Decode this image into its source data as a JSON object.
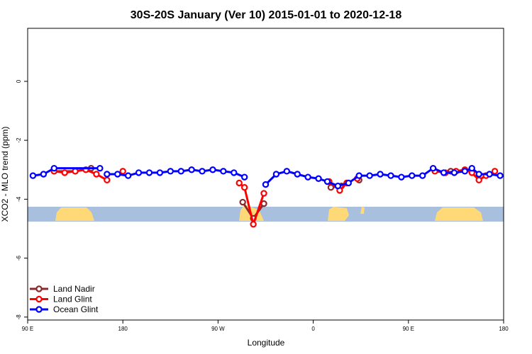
{
  "chart_data": {
    "type": "line",
    "title": "30S-20S January (Ver 10)   2015-01-01 to 2020-12-18",
    "xlabel": "Longitude",
    "ylabel": "XCO2 - MLO trend (ppm)",
    "xlim": [
      -90,
      180
    ],
    "ylim": [
      -8.1,
      1.8
    ],
    "x_ticks": [
      {
        "value": -90,
        "label": "90 E"
      },
      {
        "value": -36,
        "label": "180"
      },
      {
        "value": 18,
        "label": "90 W"
      },
      {
        "value": 72,
        "label": "0"
      },
      {
        "value": 126,
        "label": "90 E"
      },
      {
        "value": 180,
        "label": "180"
      }
    ],
    "y_ticks": [
      {
        "value": 0,
        "label": "0"
      },
      {
        "value": -2,
        "label": "-2"
      },
      {
        "value": -4,
        "label": "-4"
      },
      {
        "value": -6,
        "label": "-6"
      },
      {
        "value": -8,
        "label": "-8"
      }
    ],
    "grid": false,
    "legend_position": "bottom-left",
    "series": [
      {
        "name": "Land Nadir",
        "color": "#8b2a2a",
        "segments": [
          [
            [
              -75,
              -3.05
            ],
            [
              -63,
              -3.05
            ],
            [
              -54,
              -2.95
            ]
          ],
          [
            [
              32,
              -4.1
            ],
            [
              38,
              -4.65
            ],
            [
              44,
              -4.15
            ]
          ],
          [
            [
              82,
              -3.6
            ],
            [
              88,
              -3.55
            ]
          ],
          [
            [
              98,
              -3.35
            ]
          ],
          [
            [
              150,
              -3.05
            ]
          ]
        ]
      },
      {
        "name": "Land Glint",
        "color": "#ff0000",
        "segments": [
          [
            [
              -75,
              -3.05
            ],
            [
              -69,
              -3.1
            ],
            [
              -63,
              -3.05
            ],
            [
              -57,
              -3.0
            ],
            [
              -51,
              -3.15
            ],
            [
              -45,
              -3.35
            ]
          ],
          [
            [
              -36,
              -3.05
            ]
          ],
          [
            [
              30,
              -3.45
            ],
            [
              33,
              -3.6
            ],
            [
              38,
              -4.85
            ],
            [
              44,
              -3.8
            ]
          ],
          [
            [
              81,
              -3.4
            ],
            [
              87,
              -3.7
            ],
            [
              91,
              -3.45
            ]
          ],
          [
            [
              97,
              -3.3
            ]
          ],
          [
            [
              141,
              -3.05
            ],
            [
              147,
              -3.1
            ],
            [
              153,
              -3.05
            ],
            [
              158,
              -3.0
            ],
            [
              162,
              -3.1
            ],
            [
              166,
              -3.35
            ],
            [
              170,
              -3.2
            ],
            [
              175,
              -3.05
            ]
          ]
        ]
      },
      {
        "name": "Ocean Glint",
        "color": "#0000ff",
        "segments": [
          [
            [
              -87,
              -3.2
            ],
            [
              -81,
              -3.15
            ],
            [
              -75,
              -2.95
            ],
            [
              -49,
              -2.95
            ]
          ],
          [
            [
              -45,
              -3.15
            ],
            [
              -39,
              -3.15
            ],
            [
              -33,
              -3.2
            ],
            [
              -27,
              -3.1
            ],
            [
              -21,
              -3.1
            ],
            [
              -15,
              -3.1
            ],
            [
              -9,
              -3.05
            ],
            [
              -3,
              -3.05
            ],
            [
              3,
              -3.0
            ],
            [
              9,
              -3.05
            ],
            [
              15,
              -3.0
            ],
            [
              21,
              -3.05
            ],
            [
              27,
              -3.1
            ],
            [
              33,
              -3.25
            ]
          ],
          [
            [
              45,
              -3.5
            ],
            [
              51,
              -3.15
            ],
            [
              57,
              -3.05
            ],
            [
              63,
              -3.15
            ],
            [
              69,
              -3.25
            ],
            [
              75,
              -3.3
            ],
            [
              80,
              -3.4
            ],
            [
              86,
              -3.55
            ],
            [
              92,
              -3.45
            ],
            [
              98,
              -3.2
            ],
            [
              104,
              -3.2
            ],
            [
              110,
              -3.15
            ],
            [
              116,
              -3.2
            ],
            [
              122,
              -3.25
            ],
            [
              128,
              -3.2
            ],
            [
              134,
              -3.2
            ],
            [
              140,
              -2.95
            ],
            [
              146,
              -3.1
            ],
            [
              152,
              -3.1
            ],
            [
              158,
              -3.05
            ],
            [
              162,
              -2.95
            ],
            [
              166,
              -3.15
            ],
            [
              172,
              -3.15
            ],
            [
              178,
              -3.2
            ]
          ]
        ]
      }
    ],
    "colors": {
      "ocean": "#a8bfde",
      "land": "#ffd978"
    }
  }
}
